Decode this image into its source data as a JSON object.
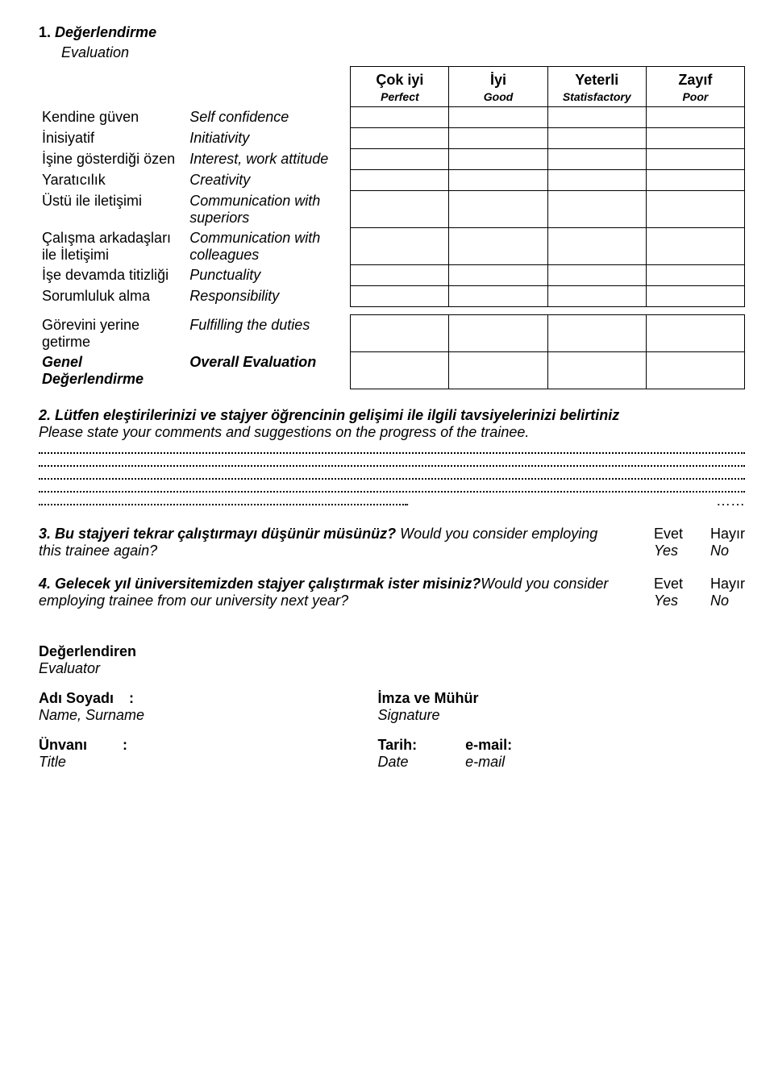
{
  "section1": {
    "number": "1.",
    "title_tr": "Değerlendirme",
    "title_en": "Evaluation"
  },
  "ratings": {
    "colwidths": {
      "label1": 180,
      "label2": 200,
      "rating": 120
    },
    "headers": [
      {
        "tr": "Çok iyi",
        "en": "Perfect"
      },
      {
        "tr": "İyi",
        "en": "Good"
      },
      {
        "tr": "Yeterli",
        "en": "Statisfactory"
      },
      {
        "tr": "Zayıf",
        "en": "Poor"
      }
    ],
    "rows": [
      {
        "tr": "Kendine güven",
        "en": "Self confidence"
      },
      {
        "tr": "İnisiyatif",
        "en": "Initiativity"
      },
      {
        "tr": "İşine gösterdiği özen",
        "en": "Interest, work attitude"
      },
      {
        "tr": "Yaratıcılık",
        "en": "Creativity"
      },
      {
        "tr": "Üstü ile iletişimi",
        "en": "Communication with superiors"
      },
      {
        "tr": "Çalışma arkadaşları ile İletişimi",
        "en": "Communication with colleagues"
      },
      {
        "tr": "İşe devamda titizliği",
        "en": "Punctuality"
      },
      {
        "tr": "Sorumluluk alma",
        "en": "Responsibility"
      }
    ],
    "rows2": [
      {
        "tr": "Görevini yerine getirme",
        "en": "Fulfilling the duties",
        "en_italic": true
      },
      {
        "tr": "Genel Değerlendirme",
        "en": "Overall Evaluation",
        "tr_bolditalic": true,
        "en_bolditalic": true
      }
    ]
  },
  "q2": {
    "number": "2.",
    "tr": "Lütfen eleştirilerinizi ve stajyer öğrencinin gelişimi ile ilgili tavsiyelerinizi belirtiniz",
    "en": "Please state your comments and suggestions on the progress of the trainee.",
    "dotted_full_lines": 4,
    "dotted_short_suffix": ".",
    "short_trailing": "……"
  },
  "q3": {
    "number": "3.",
    "tr": "Bu stajyeri tekrar çalıştırmayı düşünür müsünüz?",
    "en": "Would you consider employing this trainee again?"
  },
  "q4": {
    "number": "4.",
    "tr": "Gelecek yıl üniversitemizden stajyer çalıştırmak ister misiniz?",
    "en": "Would you consider employing trainee from our university next year?"
  },
  "answers": {
    "yes_tr": "Evet",
    "yes_en": "Yes",
    "no_tr": "Hayır",
    "no_en": "No"
  },
  "evaluator": {
    "title_tr": "Değerlendiren",
    "title_en": "Evaluator",
    "name_tr": "Adı Soyadı",
    "name_en": "Name, Surname",
    "sig_tr": "İmza ve Mühür",
    "sig_en": "Signature",
    "title_field_tr": "Ünvanı",
    "title_field_en": "Title",
    "date_tr": "Tarih:",
    "date_en": "Date",
    "email_tr": "e-mail:",
    "email_en": "e-mail",
    "colon": ":"
  },
  "colors": {
    "text": "#000000",
    "bg": "#ffffff",
    "border": "#000000"
  },
  "typography": {
    "base_fontsize": 18,
    "header_sub_fontsize": 14
  }
}
